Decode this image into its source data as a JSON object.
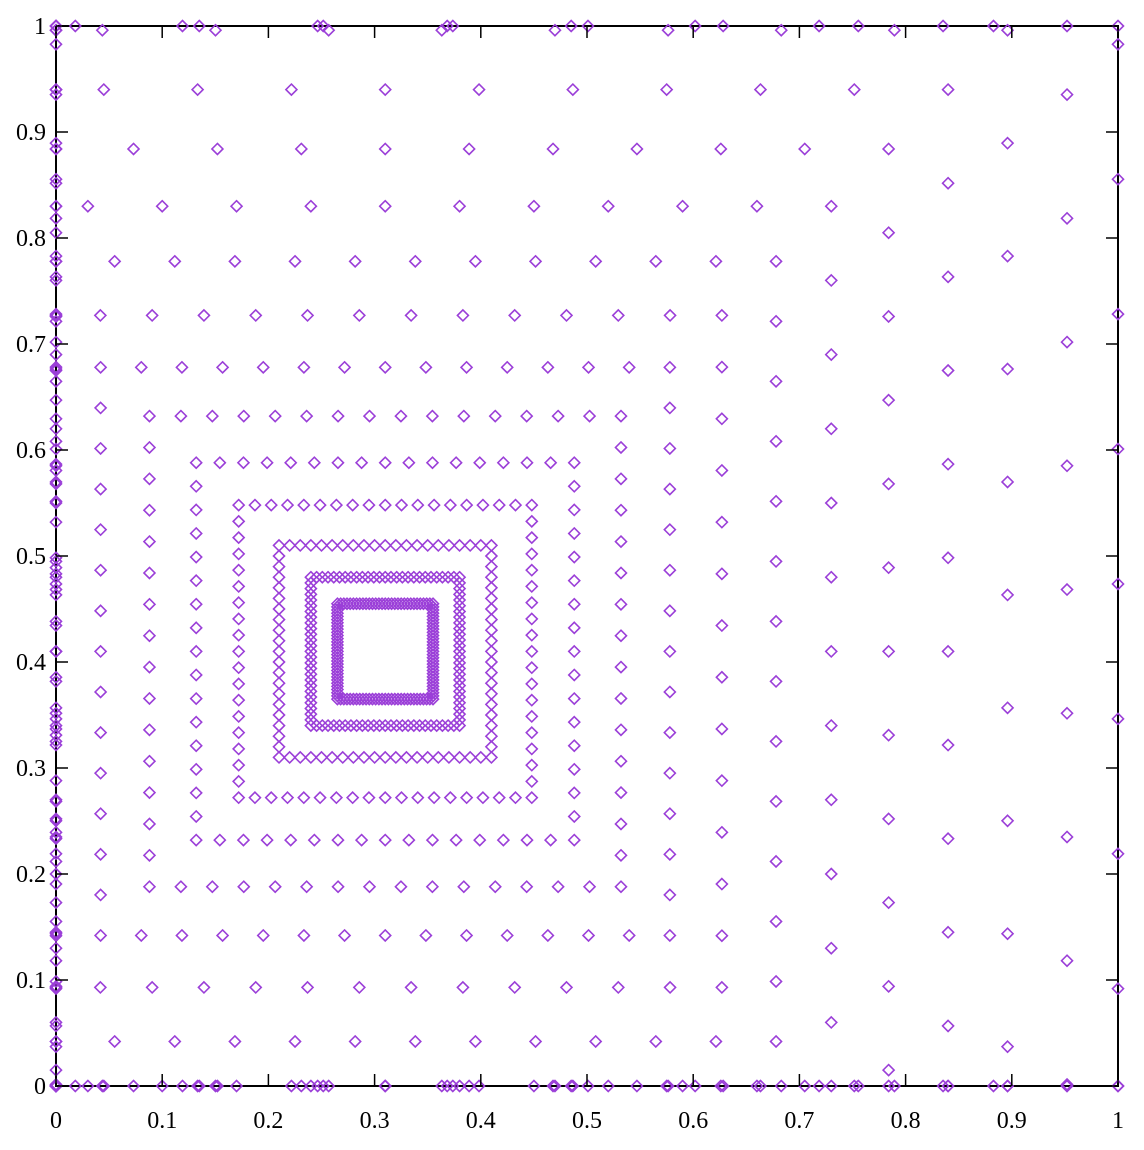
{
  "chart_data": {
    "type": "scatter",
    "title": "",
    "xlabel": "",
    "ylabel": "",
    "xlim": [
      0,
      1
    ],
    "ylim": [
      0,
      1
    ],
    "grid": false,
    "marker": "diamond-open",
    "color": "#9b3fd8",
    "xticks": [
      "0",
      "0.1",
      "0.2",
      "0.3",
      "0.4",
      "0.5",
      "0.6",
      "0.7",
      "0.8",
      "0.9",
      "1"
    ],
    "yticks": [
      "0",
      "0.1",
      "0.2",
      "0.3",
      "0.4",
      "0.5",
      "0.6",
      "0.7",
      "0.8",
      "0.9",
      "1"
    ],
    "description": "Points cluster on nested square rings around center (0.31, 0.41); half-widths below.",
    "center": [
      0.31,
      0.41
    ],
    "rings": [
      {
        "half_width": 0.045,
        "points_per_side": 30
      },
      {
        "half_width": 0.07,
        "points_per_side": 26
      },
      {
        "half_width": 0.1,
        "points_per_side": 20
      },
      {
        "half_width": 0.138,
        "points_per_side": 18
      },
      {
        "half_width": 0.178,
        "points_per_side": 16
      },
      {
        "half_width": 0.222,
        "points_per_side": 15
      },
      {
        "half_width": 0.268,
        "points_per_side": 14
      },
      {
        "half_width": 0.317,
        "points_per_side": 13
      },
      {
        "half_width": 0.368,
        "points_per_side": 13
      },
      {
        "half_width": 0.42,
        "points_per_side": 12
      },
      {
        "half_width": 0.474,
        "points_per_side": 12
      },
      {
        "half_width": 0.53,
        "points_per_side": 12
      },
      {
        "half_width": 0.586,
        "points_per_side": 11
      },
      {
        "half_width": 0.642,
        "points_per_side": 11
      },
      {
        "half_width": 0.7,
        "points_per_side": 11
      }
    ]
  }
}
